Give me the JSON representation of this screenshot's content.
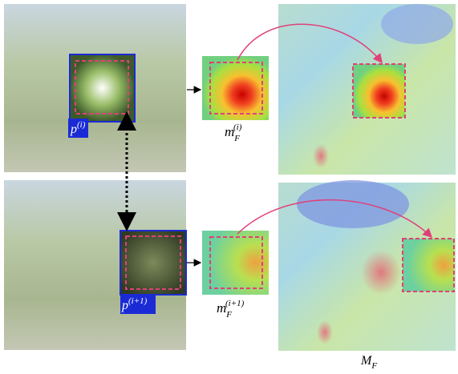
{
  "labels": {
    "patch_i": {
      "base": "p",
      "sup": "(i)"
    },
    "patch_i1": {
      "base": "p",
      "sup": "(i+1)"
    },
    "map_i": {
      "base": "m",
      "sub": "F",
      "sup": "(i)"
    },
    "map_i1": {
      "base": "m",
      "sub": "F",
      "sup": "(i+1)"
    },
    "full_map": {
      "base": "M",
      "sub": "F"
    }
  }
}
